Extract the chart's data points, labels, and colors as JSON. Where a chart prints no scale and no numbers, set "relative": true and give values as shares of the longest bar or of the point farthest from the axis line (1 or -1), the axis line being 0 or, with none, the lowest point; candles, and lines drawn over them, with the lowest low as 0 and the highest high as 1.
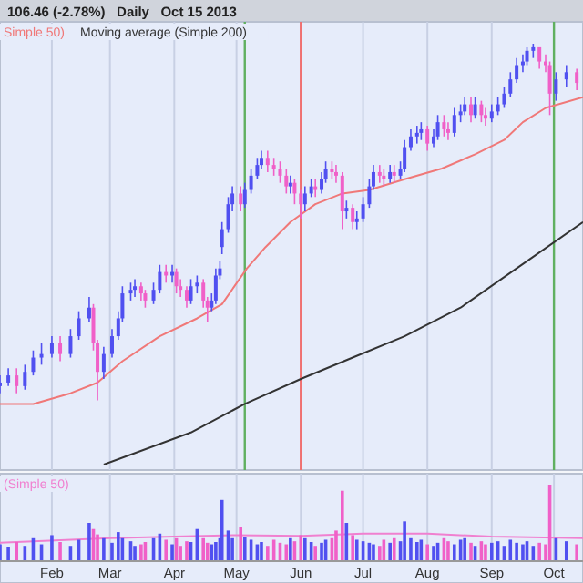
{
  "chart_data": [
    {
      "type": "candlestick",
      "title": "106.46 (-2.78%)   Daily   Oct 15 2013",
      "relative": true,
      "tick_labels": false,
      "grid": "x",
      "legend": "top left",
      "xlim": [
        "2013-01-07",
        "2013-10-15"
      ],
      "xticks": [
        {
          "value": "2013-02-01",
          "label": null
        },
        {
          "value": "2013-03-01",
          "label": null
        },
        {
          "value": "2013-04-01",
          "label": null
        },
        {
          "value": "2013-05-01",
          "label": null
        },
        {
          "value": "2013-06-01",
          "label": null
        },
        {
          "value": "2013-07-01",
          "label": null
        },
        {
          "value": "2013-08-01",
          "label": null
        },
        {
          "value": "2013-09-01",
          "label": null
        },
        {
          "value": "2013-10-01",
          "label": null
        }
      ],
      "x": [
        "2013-01-07",
        "2013-01-11",
        "2013-01-15",
        "2013-01-19",
        "2013-01-23",
        "2013-01-27",
        "2013-02-01",
        "2013-02-05",
        "2013-02-10",
        "2013-02-14",
        "2013-02-19",
        "2013-02-21",
        "2013-02-23",
        "2013-02-26",
        "2013-03-02",
        "2013-03-05",
        "2013-03-07",
        "2013-03-11",
        "2013-03-13",
        "2013-03-16",
        "2013-03-18",
        "2013-03-22",
        "2013-03-25",
        "2013-03-28",
        "2013-03-31",
        "2013-04-02",
        "2013-04-04",
        "2013-04-07",
        "2013-04-09",
        "2013-04-12",
        "2013-04-15",
        "2013-04-17",
        "2013-04-19",
        "2013-04-21",
        "2013-04-23",
        "2013-04-24",
        "2013-04-27",
        "2013-04-29",
        "2013-05-03",
        "2013-05-05",
        "2013-05-08",
        "2013-05-11",
        "2013-05-13",
        "2013-05-16",
        "2013-05-19",
        "2013-05-22",
        "2013-05-25",
        "2013-05-27",
        "2013-05-29",
        "2013-06-01",
        "2013-06-03",
        "2013-06-06",
        "2013-06-08",
        "2013-06-11",
        "2013-06-13",
        "2013-06-16",
        "2013-06-18",
        "2013-06-21",
        "2013-06-23",
        "2013-06-26",
        "2013-06-28",
        "2013-07-01",
        "2013-07-04",
        "2013-07-06",
        "2013-07-09",
        "2013-07-11",
        "2013-07-14",
        "2013-07-16",
        "2013-07-19",
        "2013-07-21",
        "2013-07-24",
        "2013-07-27",
        "2013-07-29",
        "2013-08-01",
        "2013-08-04",
        "2013-08-06",
        "2013-08-09",
        "2013-08-11",
        "2013-08-14",
        "2013-08-17",
        "2013-08-19",
        "2013-08-22",
        "2013-08-24",
        "2013-08-27",
        "2013-08-29",
        "2013-09-01",
        "2013-09-04",
        "2013-09-07",
        "2013-09-10",
        "2013-09-13",
        "2013-09-16",
        "2013-09-18",
        "2013-09-21",
        "2013-09-24",
        "2013-09-27",
        "2013-09-29",
        "2013-10-02",
        "2013-10-07",
        "2013-10-12"
      ],
      "ohlc": [
        [
          0.04,
          0.07,
          0.02,
          0.05
        ],
        [
          0.05,
          0.09,
          0.04,
          0.07
        ],
        [
          0.07,
          0.09,
          0.02,
          0.04
        ],
        [
          0.04,
          0.1,
          0.03,
          0.08
        ],
        [
          0.08,
          0.14,
          0.07,
          0.12
        ],
        [
          0.12,
          0.16,
          0.1,
          0.13
        ],
        [
          0.13,
          0.18,
          0.12,
          0.16
        ],
        [
          0.16,
          0.18,
          0.11,
          0.13
        ],
        [
          0.13,
          0.2,
          0.12,
          0.18
        ],
        [
          0.18,
          0.25,
          0.17,
          0.23
        ],
        [
          0.23,
          0.29,
          0.22,
          0.26
        ],
        [
          0.26,
          0.27,
          0.14,
          0.16
        ],
        [
          0.16,
          0.17,
          0,
          0.08
        ],
        [
          0.08,
          0.15,
          0.06,
          0.13
        ],
        [
          0.13,
          0.2,
          0.12,
          0.18
        ],
        [
          0.18,
          0.25,
          0.17,
          0.23
        ],
        [
          0.23,
          0.32,
          0.22,
          0.3
        ],
        [
          0.3,
          0.33,
          0.28,
          0.31
        ],
        [
          0.31,
          0.34,
          0.29,
          0.32
        ],
        [
          0.32,
          0.33,
          0.28,
          0.3
        ],
        [
          0.3,
          0.31,
          0.26,
          0.28
        ],
        [
          0.28,
          0.33,
          0.27,
          0.31
        ],
        [
          0.31,
          0.38,
          0.3,
          0.36
        ],
        [
          0.36,
          0.38,
          0.33,
          0.35
        ],
        [
          0.35,
          0.38,
          0.33,
          0.36
        ],
        [
          0.36,
          0.37,
          0.3,
          0.32
        ],
        [
          0.32,
          0.34,
          0.29,
          0.31
        ],
        [
          0.31,
          0.32,
          0.26,
          0.28
        ],
        [
          0.28,
          0.34,
          0.27,
          0.32
        ],
        [
          0.32,
          0.35,
          0.3,
          0.33
        ],
        [
          0.33,
          0.34,
          0.26,
          0.28
        ],
        [
          0.28,
          0.29,
          0.22,
          0.26
        ],
        [
          0.26,
          0.3,
          0.25,
          0.28
        ],
        [
          0.28,
          0.37,
          0.27,
          0.35
        ],
        [
          0.35,
          0.39,
          0.34,
          0.37
        ],
        [
          0.43,
          0.5,
          0.41,
          0.48
        ],
        [
          0.48,
          0.57,
          0.47,
          0.55
        ],
        [
          0.55,
          0.6,
          0.53,
          0.58
        ],
        [
          0.58,
          0.6,
          0.53,
          0.55
        ],
        [
          0.55,
          0.61,
          0.54,
          0.59
        ],
        [
          0.59,
          0.65,
          0.58,
          0.63
        ],
        [
          0.63,
          0.68,
          0.62,
          0.66
        ],
        [
          0.66,
          0.7,
          0.65,
          0.68
        ],
        [
          0.68,
          0.7,
          0.64,
          0.66
        ],
        [
          0.66,
          0.68,
          0.63,
          0.65
        ],
        [
          0.65,
          0.67,
          0.61,
          0.63
        ],
        [
          0.63,
          0.65,
          0.58,
          0.6
        ],
        [
          0.6,
          0.63,
          0.58,
          0.61
        ],
        [
          0.61,
          0.62,
          0.55,
          0.58
        ],
        [
          0.58,
          0.59,
          0.51,
          0.55
        ],
        [
          0.55,
          0.6,
          0.53,
          0.58
        ],
        [
          0.58,
          0.62,
          0.57,
          0.6
        ],
        [
          0.6,
          0.62,
          0.57,
          0.59
        ],
        [
          0.59,
          0.64,
          0.58,
          0.62
        ],
        [
          0.62,
          0.67,
          0.61,
          0.65
        ],
        [
          0.65,
          0.67,
          0.62,
          0.64
        ],
        [
          0.64,
          0.66,
          0.61,
          0.63
        ],
        [
          0.63,
          0.64,
          0.48,
          0.53
        ],
        [
          0.53,
          0.56,
          0.51,
          0.54
        ],
        [
          0.54,
          0.55,
          0.48,
          0.5
        ],
        [
          0.5,
          0.53,
          0.48,
          0.51
        ],
        [
          0.51,
          0.57,
          0.5,
          0.55
        ],
        [
          0.55,
          0.62,
          0.54,
          0.6
        ],
        [
          0.6,
          0.66,
          0.59,
          0.64
        ],
        [
          0.64,
          0.66,
          0.61,
          0.63
        ],
        [
          0.63,
          0.65,
          0.6,
          0.62
        ],
        [
          0.62,
          0.66,
          0.61,
          0.64
        ],
        [
          0.64,
          0.66,
          0.61,
          0.63
        ],
        [
          0.63,
          0.67,
          0.62,
          0.65
        ],
        [
          0.65,
          0.73,
          0.64,
          0.71
        ],
        [
          0.71,
          0.76,
          0.7,
          0.74
        ],
        [
          0.74,
          0.77,
          0.72,
          0.75
        ],
        [
          0.75,
          0.78,
          0.73,
          0.76
        ],
        [
          0.76,
          0.77,
          0.7,
          0.72
        ],
        [
          0.72,
          0.76,
          0.71,
          0.74
        ],
        [
          0.74,
          0.8,
          0.73,
          0.78
        ],
        [
          0.78,
          0.8,
          0.74,
          0.76
        ],
        [
          0.76,
          0.78,
          0.73,
          0.75
        ],
        [
          0.75,
          0.82,
          0.74,
          0.8
        ],
        [
          0.8,
          0.83,
          0.78,
          0.81
        ],
        [
          0.81,
          0.85,
          0.8,
          0.83
        ],
        [
          0.83,
          0.85,
          0.78,
          0.8
        ],
        [
          0.8,
          0.85,
          0.79,
          0.83
        ],
        [
          0.83,
          0.84,
          0.78,
          0.8
        ],
        [
          0.8,
          0.82,
          0.77,
          0.79
        ],
        [
          0.79,
          0.83,
          0.78,
          0.81
        ],
        [
          0.81,
          0.85,
          0.8,
          0.83
        ],
        [
          0.83,
          0.88,
          0.82,
          0.86
        ],
        [
          0.86,
          0.92,
          0.85,
          0.9
        ],
        [
          0.9,
          0.96,
          0.89,
          0.94
        ],
        [
          0.94,
          0.97,
          0.92,
          0.95
        ],
        [
          0.95,
          0.99,
          0.94,
          0.98
        ],
        [
          0.98,
          1,
          0.96,
          0.99
        ],
        [
          0.99,
          0.99,
          0.93,
          0.95
        ],
        [
          0.95,
          0.97,
          0.92,
          0.94
        ],
        [
          0.94,
          0.95,
          0.8,
          0.86
        ],
        [
          0.86,
          0.92,
          0.84,
          0.9
        ],
        [
          0.9,
          0.94,
          0.88,
          0.92
        ],
        [
          0.92,
          0.93,
          0.87,
          0.89
        ]
      ],
      "colors": [
        "#5050f0",
        "#5050f0",
        "#f060c8",
        "#5050f0",
        "#5050f0",
        "#5050f0",
        "#5050f0",
        "#f060c8",
        "#5050f0",
        "#5050f0",
        "#5050f0",
        "#f060c8",
        "#f060c8",
        "#5050f0",
        "#5050f0",
        "#5050f0",
        "#5050f0",
        "#5050f0",
        "#5050f0",
        "#f060c8",
        "#f060c8",
        "#5050f0",
        "#5050f0",
        "#f060c8",
        "#5050f0",
        "#f060c8",
        "#f060c8",
        "#f060c8",
        "#5050f0",
        "#5050f0",
        "#f060c8",
        "#f060c8",
        "#5050f0",
        "#5050f0",
        "#5050f0",
        "#5050f0",
        "#5050f0",
        "#5050f0",
        "#f060c8",
        "#5050f0",
        "#5050f0",
        "#5050f0",
        "#5050f0",
        "#f060c8",
        "#f060c8",
        "#f060c8",
        "#f060c8",
        "#5050f0",
        "#f060c8",
        "#f060c8",
        "#5050f0",
        "#5050f0",
        "#f060c8",
        "#5050f0",
        "#5050f0",
        "#f060c8",
        "#f060c8",
        "#f060c8",
        "#5050f0",
        "#f060c8",
        "#5050f0",
        "#5050f0",
        "#5050f0",
        "#5050f0",
        "#f060c8",
        "#f060c8",
        "#5050f0",
        "#f060c8",
        "#5050f0",
        "#5050f0",
        "#5050f0",
        "#5050f0",
        "#5050f0",
        "#f060c8",
        "#5050f0",
        "#5050f0",
        "#f060c8",
        "#f060c8",
        "#5050f0",
        "#5050f0",
        "#5050f0",
        "#f060c8",
        "#5050f0",
        "#f060c8",
        "#f060c8",
        "#5050f0",
        "#5050f0",
        "#5050f0",
        "#5050f0",
        "#5050f0",
        "#5050f0",
        "#5050f0",
        "#5050f0",
        "#f060c8",
        "#f060c8",
        "#f060c8",
        "#5050f0",
        "#5050f0",
        "#f060c8"
      ],
      "series": [
        {
          "type": "line",
          "name": "Simple 50)",
          "color": "#f07878",
          "x": [
            "2013-01-07",
            "2013-01-23",
            "2013-02-10",
            "2013-02-23",
            "2013-03-07",
            "2013-03-25",
            "2013-04-12",
            "2013-04-24",
            "2013-05-06",
            "2013-05-15",
            "2013-05-27",
            "2013-06-08",
            "2013-06-21",
            "2013-07-04",
            "2013-07-21",
            "2013-08-08",
            "2013-08-24",
            "2013-09-07",
            "2013-09-16",
            "2013-09-27",
            "2013-10-15"
          ],
          "values": [
            -0.01,
            -0.01,
            0.02,
            0.05,
            0.11,
            0.18,
            0.23,
            0.27,
            0.37,
            0.43,
            0.5,
            0.55,
            0.58,
            0.59,
            0.62,
            0.65,
            0.69,
            0.73,
            0.78,
            0.82,
            0.85
          ]
        },
        {
          "type": "line",
          "name": "Moving average (Simple 200)",
          "color": "#333333",
          "x": [
            "2013-02-26",
            "2013-04-09",
            "2013-05-05",
            "2013-06-01",
            "2013-06-26",
            "2013-07-21",
            "2013-08-17",
            "2013-09-13",
            "2013-10-15"
          ],
          "values": [
            -0.18,
            -0.09,
            -0.01,
            0.06,
            0.12,
            0.18,
            0.26,
            0.37,
            0.5
          ]
        }
      ],
      "ref_lines": [
        {
          "axis": "x",
          "value": "2013-05-05",
          "color": "#60b060"
        },
        {
          "axis": "x",
          "value": "2013-06-01",
          "color": "#f07070"
        },
        {
          "axis": "x",
          "value": "2013-10-01",
          "color": "#60b060"
        }
      ]
    },
    {
      "type": "bar",
      "relative": true,
      "tick_labels": "x",
      "grid": "x",
      "legend": "top left",
      "xlim": [
        "2013-01-07",
        "2013-10-15"
      ],
      "xticks": [
        {
          "value": "2013-02-01",
          "label": "Feb"
        },
        {
          "value": "2013-03-01",
          "label": "Mar"
        },
        {
          "value": "2013-04-01",
          "label": "Apr"
        },
        {
          "value": "2013-05-01",
          "label": "May"
        },
        {
          "value": "2013-06-01",
          "label": "Jun"
        },
        {
          "value": "2013-07-01",
          "label": "Jul"
        },
        {
          "value": "2013-08-01",
          "label": "Aug"
        },
        {
          "value": "2013-09-01",
          "label": "Sep"
        },
        {
          "value": "2013-10-01",
          "label": "Oct"
        }
      ],
      "x": [
        "2013-01-07",
        "2013-01-11",
        "2013-01-15",
        "2013-01-19",
        "2013-01-23",
        "2013-01-27",
        "2013-02-01",
        "2013-02-05",
        "2013-02-10",
        "2013-02-14",
        "2013-02-19",
        "2013-02-21",
        "2013-02-23",
        "2013-02-26",
        "2013-03-02",
        "2013-03-05",
        "2013-03-07",
        "2013-03-11",
        "2013-03-13",
        "2013-03-16",
        "2013-03-18",
        "2013-03-22",
        "2013-03-25",
        "2013-03-28",
        "2013-03-31",
        "2013-04-02",
        "2013-04-04",
        "2013-04-07",
        "2013-04-09",
        "2013-04-12",
        "2013-04-15",
        "2013-04-17",
        "2013-04-19",
        "2013-04-21",
        "2013-04-23",
        "2013-04-24",
        "2013-04-27",
        "2013-04-29",
        "2013-05-03",
        "2013-05-05",
        "2013-05-08",
        "2013-05-11",
        "2013-05-13",
        "2013-05-16",
        "2013-05-19",
        "2013-05-22",
        "2013-05-25",
        "2013-05-27",
        "2013-05-29",
        "2013-06-01",
        "2013-06-03",
        "2013-06-06",
        "2013-06-08",
        "2013-06-11",
        "2013-06-13",
        "2013-06-16",
        "2013-06-18",
        "2013-06-21",
        "2013-06-23",
        "2013-06-26",
        "2013-06-28",
        "2013-07-01",
        "2013-07-04",
        "2013-07-06",
        "2013-07-09",
        "2013-07-11",
        "2013-07-14",
        "2013-07-16",
        "2013-07-19",
        "2013-07-21",
        "2013-07-24",
        "2013-07-27",
        "2013-07-29",
        "2013-08-01",
        "2013-08-04",
        "2013-08-06",
        "2013-08-09",
        "2013-08-11",
        "2013-08-14",
        "2013-08-17",
        "2013-08-19",
        "2013-08-22",
        "2013-08-24",
        "2013-08-27",
        "2013-08-29",
        "2013-09-01",
        "2013-09-04",
        "2013-09-07",
        "2013-09-10",
        "2013-09-13",
        "2013-09-16",
        "2013-09-18",
        "2013-09-21",
        "2013-09-24",
        "2013-09-27",
        "2013-09-29",
        "2013-10-02",
        "2013-10-07",
        "2013-10-12"
      ],
      "values": [
        0.22,
        0.18,
        0.25,
        0.2,
        0.3,
        0.22,
        0.34,
        0.25,
        0.2,
        0.28,
        0.5,
        0.42,
        0.35,
        0.3,
        0.24,
        0.38,
        0.3,
        0.26,
        0.2,
        0.22,
        0.25,
        0.3,
        0.36,
        0.28,
        0.22,
        0.3,
        0.2,
        0.26,
        0.25,
        0.42,
        0.3,
        0.24,
        0.22,
        0.25,
        0.3,
        0.8,
        0.4,
        0.3,
        0.45,
        0.32,
        0.28,
        0.22,
        0.25,
        0.2,
        0.28,
        0.24,
        0.22,
        0.3,
        0.26,
        0.34,
        0.3,
        0.25,
        0.2,
        0.24,
        0.28,
        0.3,
        0.4,
        0.92,
        0.5,
        0.34,
        0.28,
        0.26,
        0.24,
        0.22,
        0.2,
        0.28,
        0.24,
        0.3,
        0.26,
        0.52,
        0.3,
        0.25,
        0.28,
        0.22,
        0.2,
        0.24,
        0.3,
        0.26,
        0.22,
        0.28,
        0.3,
        0.24,
        0.2,
        0.26,
        0.22,
        0.24,
        0.26,
        0.2,
        0.28,
        0.24,
        0.22,
        0.26,
        0.2,
        0.24,
        0.22,
        1,
        0.3,
        0.26,
        0.22
      ],
      "colors": [
        "#5050f0",
        "#5050f0",
        "#f060c8",
        "#5050f0",
        "#5050f0",
        "#5050f0",
        "#5050f0",
        "#f060c8",
        "#5050f0",
        "#5050f0",
        "#5050f0",
        "#f060c8",
        "#f060c8",
        "#5050f0",
        "#5050f0",
        "#5050f0",
        "#5050f0",
        "#5050f0",
        "#5050f0",
        "#f060c8",
        "#f060c8",
        "#5050f0",
        "#5050f0",
        "#f060c8",
        "#5050f0",
        "#f060c8",
        "#f060c8",
        "#f060c8",
        "#5050f0",
        "#5050f0",
        "#f060c8",
        "#f060c8",
        "#5050f0",
        "#5050f0",
        "#5050f0",
        "#5050f0",
        "#5050f0",
        "#5050f0",
        "#f060c8",
        "#5050f0",
        "#5050f0",
        "#5050f0",
        "#5050f0",
        "#f060c8",
        "#f060c8",
        "#f060c8",
        "#f060c8",
        "#5050f0",
        "#f060c8",
        "#f060c8",
        "#5050f0",
        "#5050f0",
        "#f060c8",
        "#5050f0",
        "#5050f0",
        "#f060c8",
        "#f060c8",
        "#f060c8",
        "#5050f0",
        "#f060c8",
        "#5050f0",
        "#5050f0",
        "#5050f0",
        "#5050f0",
        "#f060c8",
        "#f060c8",
        "#5050f0",
        "#f060c8",
        "#5050f0",
        "#5050f0",
        "#5050f0",
        "#5050f0",
        "#5050f0",
        "#f060c8",
        "#5050f0",
        "#5050f0",
        "#f060c8",
        "#f060c8",
        "#5050f0",
        "#5050f0",
        "#5050f0",
        "#f060c8",
        "#5050f0",
        "#f060c8",
        "#f060c8",
        "#5050f0",
        "#5050f0",
        "#5050f0",
        "#5050f0",
        "#5050f0",
        "#5050f0",
        "#5050f0",
        "#5050f0",
        "#f060c8",
        "#f060c8",
        "#f060c8",
        "#5050f0",
        "#5050f0",
        "#f060c8"
      ],
      "series": [
        {
          "type": "line",
          "name": "(Simple 50)",
          "color": "#f080d0",
          "x": [
            "2013-01-07",
            "2013-03-01",
            "2013-04-01",
            "2013-05-01",
            "2013-06-01",
            "2013-07-01",
            "2013-08-01",
            "2013-09-01",
            "2013-10-15"
          ],
          "values": [
            0.24,
            0.3,
            0.32,
            0.34,
            0.33,
            0.36,
            0.36,
            0.32,
            0.3
          ]
        }
      ]
    }
  ]
}
